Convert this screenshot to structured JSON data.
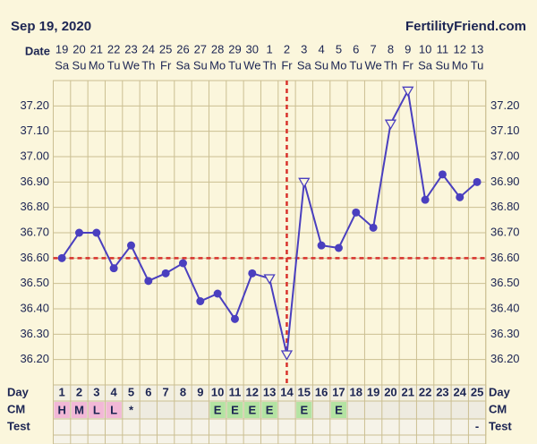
{
  "header": {
    "date": "Sep 19, 2020",
    "site": "FertilityFriend.com"
  },
  "chart_data": {
    "type": "line",
    "date_label": "Date",
    "dates": [
      19,
      20,
      21,
      22,
      23,
      24,
      25,
      26,
      27,
      28,
      29,
      30,
      1,
      2,
      3,
      4,
      5,
      6,
      7,
      8,
      9,
      10,
      11,
      12,
      13
    ],
    "weekdays": [
      "Sa",
      "Su",
      "Mo",
      "Tu",
      "We",
      "Th",
      "Fr",
      "Sa",
      "Su",
      "Mo",
      "Tu",
      "We",
      "Th",
      "Fr",
      "Sa",
      "Su",
      "Mo",
      "Tu",
      "We",
      "Th",
      "Fr",
      "Sa",
      "Su",
      "Mo",
      "Tu"
    ],
    "day_label": "Day",
    "days": [
      1,
      2,
      3,
      4,
      5,
      6,
      7,
      8,
      9,
      10,
      11,
      12,
      13,
      14,
      15,
      16,
      17,
      18,
      19,
      20,
      21,
      22,
      23,
      24,
      25
    ],
    "values": [
      36.6,
      36.7,
      36.7,
      36.56,
      36.65,
      36.51,
      36.54,
      36.58,
      36.43,
      36.46,
      36.36,
      36.54,
      36.52,
      36.22,
      36.9,
      36.65,
      36.64,
      36.78,
      36.72,
      37.13,
      37.26,
      36.83,
      36.93,
      36.84,
      36.9
    ],
    "marker_styles": [
      "dot",
      "dot",
      "dot",
      "dot",
      "dot",
      "dot",
      "dot",
      "dot",
      "dot",
      "dot",
      "dot",
      "dot",
      "open",
      "open",
      "open",
      "dot",
      "dot",
      "dot",
      "dot",
      "open",
      "open",
      "dot",
      "dot",
      "dot",
      "dot"
    ],
    "color": "#4a3fbf",
    "ylim": [
      36.1,
      37.3
    ],
    "yticks": [
      {
        "value": 36.2,
        "label": "36.20"
      },
      {
        "value": 36.3,
        "label": "36.30"
      },
      {
        "value": 36.4,
        "label": "36.40"
      },
      {
        "value": 36.5,
        "label": "36.50"
      },
      {
        "value": 36.6,
        "label": "36.60"
      },
      {
        "value": 36.7,
        "label": "36.70"
      },
      {
        "value": 36.8,
        "label": "36.80"
      },
      {
        "value": 36.9,
        "label": "36.90"
      },
      {
        "value": 37.0,
        "label": "37.00"
      },
      {
        "value": 37.1,
        "label": "37.10"
      },
      {
        "value": 37.2,
        "label": "37.20"
      }
    ],
    "grid": true,
    "coverline": 36.6,
    "ovulation_day": 14,
    "reference_color": "#d8322c",
    "cm": {
      "label": "CM",
      "values": [
        "H",
        "M",
        "L",
        "L",
        "*",
        null,
        null,
        null,
        null,
        "E",
        "E",
        "E",
        "E",
        null,
        "E",
        null,
        "E",
        null,
        null,
        null,
        null,
        null,
        null,
        null,
        null
      ],
      "colors": {
        "H": "#f2b8d6",
        "M": "#f2b8d6",
        "L": "#f2b8d6",
        "E": "#b4e3a2"
      }
    },
    "test": {
      "label": "Test",
      "values": [
        null,
        null,
        null,
        null,
        null,
        null,
        null,
        null,
        null,
        null,
        null,
        null,
        null,
        null,
        null,
        null,
        null,
        null,
        null,
        null,
        null,
        null,
        null,
        null,
        "-"
      ]
    }
  }
}
